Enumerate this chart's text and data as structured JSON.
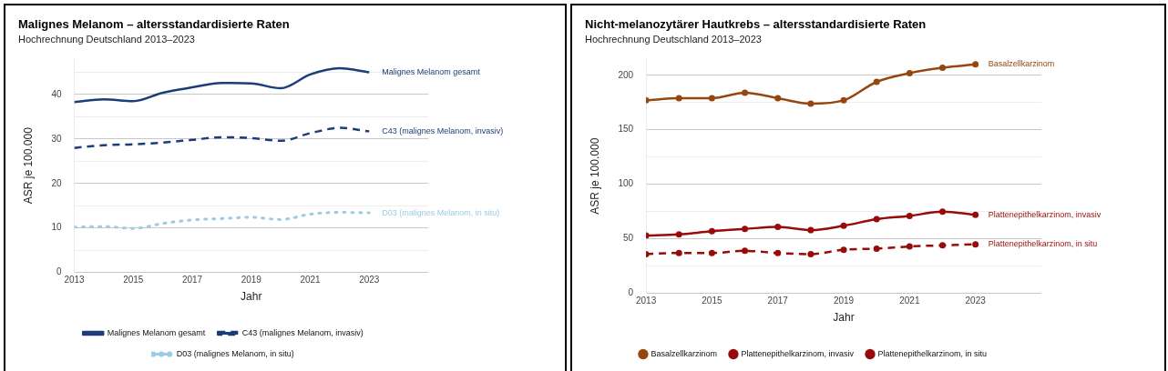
{
  "chart_data": [
    {
      "type": "line",
      "title": "Malignes Melanom – altersstandardisierte Raten",
      "subtitle": "Hochrechnung Deutschland 2013–2023",
      "xlabel": "Jahr",
      "ylabel": "ASR je 100.000",
      "x": [
        2013,
        2014,
        2015,
        2016,
        2017,
        2018,
        2019,
        2020,
        2021,
        2022,
        2023
      ],
      "xlim": [
        2013,
        2025
      ],
      "xticks": [
        2013,
        2015,
        2017,
        2019,
        2021,
        2023
      ],
      "ylim": [
        0,
        48
      ],
      "yticks": [
        0,
        {
          "value": 5,
          "label": null
        },
        10,
        {
          "value": 15,
          "label": null
        },
        20,
        {
          "value": 25,
          "label": null
        },
        30,
        {
          "value": 35,
          "label": null
        },
        40,
        {
          "value": 45,
          "label": null
        }
      ],
      "grid": "y",
      "legend": "bottom",
      "marker": "none",
      "series": [
        {
          "name": "Malignes Melanom gesamt",
          "color": "#1b3d78",
          "line_style": "solid",
          "values": [
            38.3,
            38.9,
            38.5,
            40.4,
            41.6,
            42.6,
            42.5,
            41.4,
            44.5,
            45.9,
            45.0
          ]
        },
        {
          "name": "C43 (malignes Melanom, invasiv)",
          "color": "#1b3d78",
          "line_style": "dashed",
          "values": [
            28.0,
            28.6,
            28.8,
            29.2,
            29.8,
            30.4,
            30.2,
            29.6,
            31.3,
            32.5,
            31.7
          ]
        },
        {
          "name": "D03 (malignes Melanom, in situ)",
          "color": "#9dcbe6",
          "line_style": "dotted",
          "values": [
            10.2,
            10.3,
            9.9,
            11.0,
            11.8,
            12.1,
            12.4,
            11.9,
            13.1,
            13.5,
            13.4
          ]
        }
      ]
    },
    {
      "type": "line",
      "title": "Nicht-melanozytärer Hautkrebs – altersstandardisierte Raten",
      "subtitle": "Hochrechnung Deutschland 2013–2023",
      "xlabel": "Jahr",
      "ylabel": "ASR je 100.000",
      "x": [
        2013,
        2014,
        2015,
        2016,
        2017,
        2018,
        2019,
        2020,
        2021,
        2022,
        2023
      ],
      "xlim": [
        2013,
        2025
      ],
      "xticks": [
        2013,
        2015,
        2017,
        2019,
        2021,
        2023
      ],
      "ylim": [
        0,
        215
      ],
      "yticks": [
        0,
        {
          "value": 25,
          "label": null
        },
        50,
        {
          "value": 75,
          "label": null
        },
        100,
        {
          "value": 125,
          "label": null
        },
        150,
        {
          "value": 175,
          "label": null
        },
        200
      ],
      "grid": "y",
      "legend": "bottom",
      "marker": "circle",
      "series": [
        {
          "name": "Basalzellkarzinom",
          "color": "#96460f",
          "line_style": "solid",
          "values": [
            177,
            179,
            179,
            184,
            179,
            174,
            177,
            194,
            202,
            207,
            210
          ]
        },
        {
          "name": "Plattenepithelkarzinom, invasiv",
          "color": "#980b0b",
          "line_style": "solid",
          "values": [
            53,
            54,
            57,
            59,
            61,
            58,
            62,
            68,
            71,
            75,
            72
          ]
        },
        {
          "name": "Plattenepithelkarzinom, in situ",
          "color": "#980b0b",
          "line_style": "dashed",
          "values": [
            36,
            37,
            37,
            39,
            37,
            36,
            40,
            41,
            43,
            44,
            45
          ]
        }
      ]
    }
  ]
}
